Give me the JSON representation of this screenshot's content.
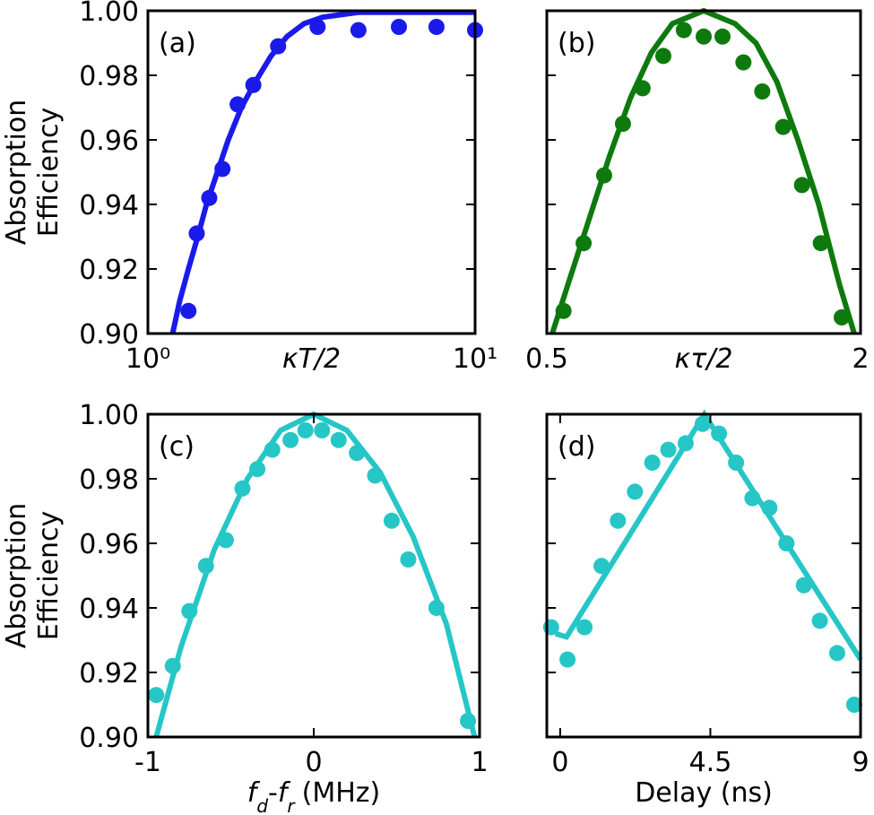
{
  "chart_data": [
    {
      "type": "scatter",
      "panel_label": "(a)",
      "ylabel": [
        "Absorption",
        "Efficiency"
      ],
      "xlabel": "κT/2",
      "xscale": "log",
      "xlim": [
        1,
        10
      ],
      "xticks": [
        {
          "value": 1,
          "label": "10⁰"
        },
        {
          "value": 10,
          "label": "10¹"
        }
      ],
      "ylim": [
        0.9,
        1.0
      ],
      "show_ytick_labels": true,
      "yticks": [
        {
          "value": 0.9,
          "label": "0.90"
        },
        {
          "value": 0.92,
          "label": "0.92"
        },
        {
          "value": 0.94,
          "label": "0.94"
        },
        {
          "value": 0.96,
          "label": "0.96"
        },
        {
          "value": 0.98,
          "label": "0.98"
        },
        {
          "value": 1.0,
          "label": "1.00"
        }
      ],
      "series": [
        {
          "kind": "points",
          "color": "#1a1aeb",
          "x": [
            1.33,
            1.41,
            1.54,
            1.69,
            1.88,
            2.1,
            2.5,
            3.3,
            4.4,
            5.85,
            7.62,
            10.0
          ],
          "values": [
            0.907,
            0.931,
            0.942,
            0.951,
            0.971,
            0.977,
            0.989,
            0.995,
            0.994,
            0.995,
            0.995,
            0.994
          ]
        },
        {
          "kind": "line",
          "color": "#1a1aeb",
          "x": [
            1.19,
            1.25,
            1.33,
            1.42,
            1.51,
            1.63,
            1.76,
            1.93,
            2.13,
            2.38,
            2.66,
            3.0,
            3.42,
            4.4,
            6,
            10
          ],
          "values": [
            0.9,
            0.91,
            0.92,
            0.93,
            0.94,
            0.95,
            0.96,
            0.97,
            0.978,
            0.986,
            0.992,
            0.996,
            0.998,
            0.9995,
            0.9995,
            0.9995
          ]
        }
      ]
    },
    {
      "type": "scatter",
      "panel_label": "(b)",
      "xlabel": "κτ/2",
      "xlim": [
        0.5,
        2
      ],
      "xticks": [
        0.5,
        2
      ],
      "ylim": [
        0.9,
        1.0
      ],
      "show_ytick_labels": false,
      "yticks": [
        0.9,
        0.92,
        0.94,
        0.96,
        0.98,
        1.0
      ],
      "series": [
        {
          "kind": "points",
          "color": "#0e7a0e",
          "x": [
            0.58,
            0.676,
            0.774,
            0.864,
            0.958,
            1.057,
            1.155,
            1.25,
            1.34,
            1.44,
            1.53,
            1.63,
            1.72,
            1.81,
            1.91
          ],
          "values": [
            0.907,
            0.928,
            0.949,
            0.965,
            0.976,
            0.986,
            0.994,
            0.992,
            0.992,
            0.984,
            0.975,
            0.964,
            0.946,
            0.928,
            0.905
          ]
        },
        {
          "kind": "line",
          "color": "#0e7a0e",
          "x": [
            0.526,
            0.6,
            0.7,
            0.8,
            0.9,
            1.0,
            1.1,
            1.25,
            1.4,
            1.5,
            1.6,
            1.7,
            1.8,
            1.9,
            1.97
          ],
          "values": [
            0.9,
            0.915,
            0.935,
            0.955,
            0.973,
            0.987,
            0.996,
            1.0,
            0.996,
            0.99,
            0.978,
            0.96,
            0.94,
            0.915,
            0.9
          ]
        }
      ]
    },
    {
      "type": "scatter",
      "panel_label": "(c)",
      "ylabel": [
        "Absorption",
        "Efficiency"
      ],
      "xlabel": [
        {
          "text": "f",
          "style": "italic"
        },
        {
          "text": "d",
          "style": "sub"
        },
        {
          "text": "-",
          "style": "normal"
        },
        {
          "text": "f",
          "style": "italic"
        },
        {
          "text": "r",
          "style": "sub"
        },
        {
          "text": "(MHz)",
          "style": "normal"
        }
      ],
      "xlim": [
        -1,
        1
      ],
      "xticks": [
        -1,
        0,
        1
      ],
      "ylim": [
        0.9,
        1.0
      ],
      "show_ytick_labels": true,
      "yticks": [
        {
          "value": 0.9,
          "label": "0.90"
        },
        {
          "value": 0.92,
          "label": "0.92"
        },
        {
          "value": 0.94,
          "label": "0.94"
        },
        {
          "value": 0.96,
          "label": "0.96"
        },
        {
          "value": 0.98,
          "label": "0.98"
        },
        {
          "value": 1.0,
          "label": "1.00"
        }
      ],
      "series": [
        {
          "kind": "points",
          "color": "#26c6c6",
          "x": [
            -0.95,
            -0.85,
            -0.75,
            -0.65,
            -0.53,
            -0.43,
            -0.34,
            -0.25,
            -0.14,
            -0.05,
            0.05,
            0.15,
            0.26,
            0.37,
            0.47,
            0.57,
            0.74,
            0.93
          ],
          "values": [
            0.913,
            0.922,
            0.939,
            0.953,
            0.961,
            0.977,
            0.983,
            0.989,
            0.992,
            0.995,
            0.995,
            0.992,
            0.988,
            0.981,
            0.967,
            0.955,
            0.94,
            0.905
          ]
        },
        {
          "kind": "line",
          "color": "#26c6c6",
          "x": [
            -0.95,
            -0.8,
            -0.6,
            -0.4,
            -0.2,
            0,
            0.2,
            0.4,
            0.6,
            0.8,
            0.97
          ],
          "values": [
            0.9,
            0.928,
            0.958,
            0.98,
            0.995,
            1.0,
            0.995,
            0.982,
            0.962,
            0.935,
            0.9
          ]
        }
      ]
    },
    {
      "type": "scatter",
      "panel_label": "(d)",
      "xlabel": "Delay (ns)",
      "xlim": [
        -0.4,
        9
      ],
      "xticks": [
        0,
        4.5,
        9
      ],
      "ylim": [
        0.9,
        1.0
      ],
      "show_ytick_labels": false,
      "yticks": [
        0.9,
        0.92,
        0.94,
        0.96,
        0.98,
        1.0
      ],
      "series": [
        {
          "kind": "points",
          "color": "#26c6c6",
          "x": [
            -0.27,
            0.22,
            0.73,
            1.24,
            1.73,
            2.24,
            2.76,
            3.24,
            3.76,
            4.27,
            4.76,
            5.27,
            5.76,
            6.27,
            6.78,
            7.3,
            7.78,
            8.3,
            8.81
          ],
          "values": [
            0.934,
            0.924,
            0.934,
            0.953,
            0.967,
            0.976,
            0.985,
            0.989,
            0.991,
            0.997,
            0.994,
            0.985,
            0.974,
            0.971,
            0.96,
            0.947,
            0.936,
            0.926,
            0.91
          ]
        },
        {
          "kind": "line",
          "color": "#26c6c6",
          "x": [
            -0.14,
            0.19,
            4.32,
            9.0
          ],
          "values": [
            0.932,
            0.931,
            1.0,
            0.924
          ]
        }
      ]
    }
  ]
}
